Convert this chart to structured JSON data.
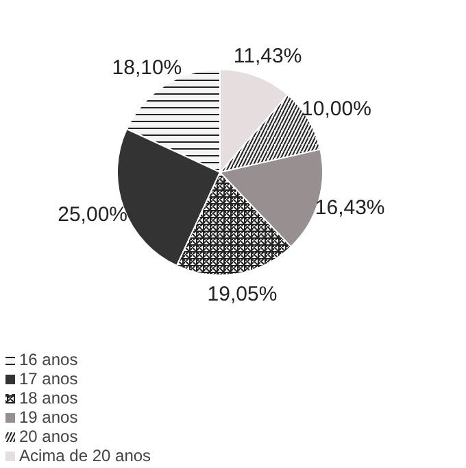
{
  "chart_data": {
    "type": "pie",
    "categories": [
      "16 anos",
      "17 anos",
      "18 anos",
      "19 anos",
      "20 anos",
      "Acima de 20 anos"
    ],
    "values": [
      18.1,
      25.0,
      19.05,
      16.43,
      10.0,
      11.43
    ],
    "value_labels": [
      "18,10%",
      "25,00%",
      "19,05%",
      "16,43%",
      "10,00%",
      "11,43%"
    ],
    "colors": [
      "#f4f4f4",
      "#333333",
      "#f4f4f4",
      "#989090",
      "#f4f4f4",
      "#e6dede"
    ],
    "legend": "bottom left"
  }
}
